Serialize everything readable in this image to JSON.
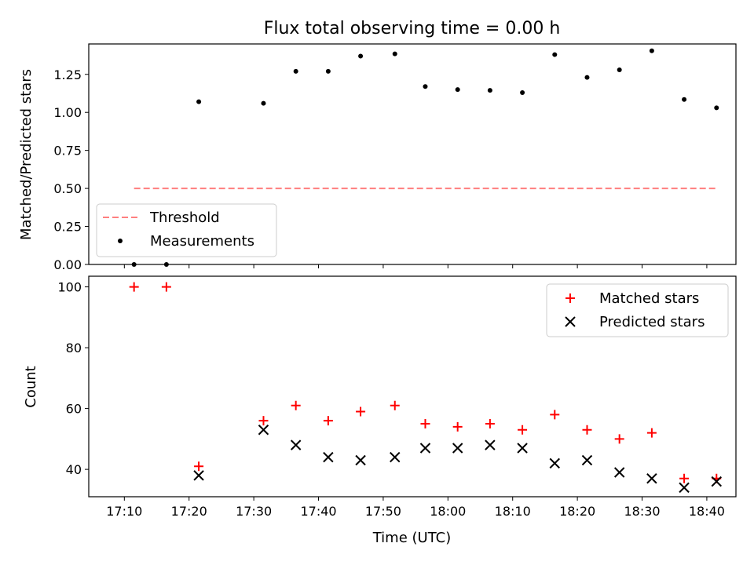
{
  "chart_data": {
    "title": "Flux total observing time = 0.00 h",
    "xlabel": "Time (UTC)",
    "x_ticks": [
      "17:10",
      "17:20",
      "17:30",
      "17:40",
      "17:50",
      "18:00",
      "18:10",
      "18:20",
      "18:30",
      "18:40"
    ],
    "x_tick_minutes": [
      0,
      10,
      20,
      30,
      40,
      50,
      60,
      70,
      80,
      90
    ],
    "x_range_minutes": [
      -5.5,
      94.5
    ],
    "x_times": [
      "17:11",
      "17:16",
      "17:21",
      "17:31",
      "17:36",
      "17:41",
      "17:46",
      "17:52",
      "17:56",
      "18:01",
      "18:06",
      "18:11",
      "18:16",
      "18:21",
      "18:26",
      "18:31",
      "18:36",
      "18:41"
    ],
    "x_minutes": [
      1.5,
      6.5,
      11.5,
      21.5,
      26.5,
      31.5,
      36.5,
      41.8,
      46.5,
      51.5,
      56.5,
      61.5,
      66.5,
      71.5,
      76.5,
      81.5,
      86.5,
      91.5
    ],
    "panels": [
      {
        "type": "scatter",
        "ylabel": "Matched/Predicted stars",
        "ylim": [
          0,
          1.45
        ],
        "y_ticks": [
          0.0,
          0.25,
          0.5,
          0.75,
          1.0,
          1.25
        ],
        "y_tick_labels": [
          "0.00",
          "0.25",
          "0.50",
          "0.75",
          "1.00",
          "1.25"
        ],
        "grid": false,
        "legend_position": "lower-left",
        "threshold": {
          "name": "Threshold",
          "value": 0.5,
          "color": "#ff7f7f",
          "x_range_minutes": [
            1.5,
            91.5
          ]
        },
        "series": [
          {
            "name": "Measurements",
            "color": "#000000",
            "values": [
              0.0,
              0.0,
              1.07,
              1.06,
              1.27,
              1.27,
              1.37,
              1.385,
              1.17,
              1.15,
              1.145,
              1.13,
              1.38,
              1.23,
              1.28,
              1.405,
              1.085,
              1.03
            ]
          }
        ]
      },
      {
        "type": "scatter",
        "ylabel": "Count",
        "ylim": [
          31,
          103.5
        ],
        "y_ticks": [
          40,
          60,
          80,
          100
        ],
        "y_tick_labels": [
          "40",
          "60",
          "80",
          "100"
        ],
        "grid": false,
        "legend_position": "top-right",
        "series": [
          {
            "name": "Matched stars",
            "marker": "plus",
            "color": "#ff0000",
            "values": [
              100,
              100,
              41,
              56,
              61,
              56,
              59,
              61,
              55,
              54,
              55,
              53,
              58,
              53,
              50,
              52,
              37,
              37
            ]
          },
          {
            "name": "Predicted stars",
            "marker": "x",
            "color": "#000000",
            "values": [
              null,
              null,
              38,
              53,
              48,
              44,
              43,
              44,
              47,
              47,
              48,
              47,
              42,
              43,
              39,
              37,
              34,
              36
            ]
          }
        ]
      }
    ]
  }
}
